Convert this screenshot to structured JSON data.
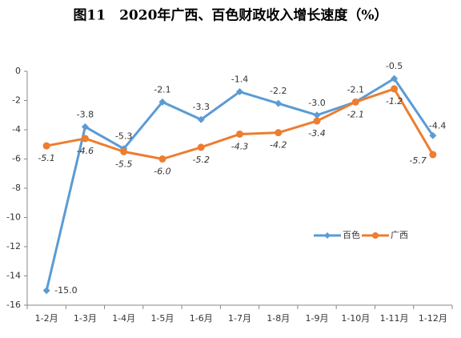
{
  "chart_data": {
    "type": "line",
    "title": "图11　2020年广西、百色财政收入增长速度（%）",
    "categories": [
      "1-2月",
      "1-3月",
      "1-4月",
      "1-5月",
      "1-6月",
      "1-7月",
      "1-8月",
      "1-9月",
      "1-10月",
      "1-11月",
      "1-12月"
    ],
    "series": [
      {
        "name": "百色",
        "color": "#5b9bd5",
        "marker": "diamond",
        "values": [
          -15.0,
          -3.8,
          -5.3,
          -2.1,
          -3.3,
          -1.4,
          -2.2,
          -3.0,
          -2.1,
          -0.5,
          -4.4
        ],
        "value_labels": [
          "-15.0",
          "-3.8",
          "-5.3",
          "-2.1",
          "-3.3",
          "-1.4",
          "-2.2",
          "-3.0",
          "-2.1",
          "-0.5",
          "-4.4"
        ]
      },
      {
        "name": "广西",
        "color": "#ed7d31",
        "marker": "circle",
        "values": [
          -5.1,
          -4.6,
          -5.5,
          -6.0,
          -5.2,
          -4.3,
          -4.2,
          -3.4,
          -2.1,
          -1.2,
          -5.7
        ],
        "value_labels": [
          "-5.1",
          "-4.6",
          "-5.5",
          "-6.0",
          "-5.2",
          "-4.3",
          "-4.2",
          "-3.4",
          "-2.1",
          "-1.2",
          "-5.7"
        ]
      }
    ],
    "ylim": [
      -16,
      0
    ],
    "yticks": [
      0,
      -2,
      -4,
      -6,
      -8,
      -10,
      -12,
      -14,
      -16
    ],
    "grid": false
  }
}
